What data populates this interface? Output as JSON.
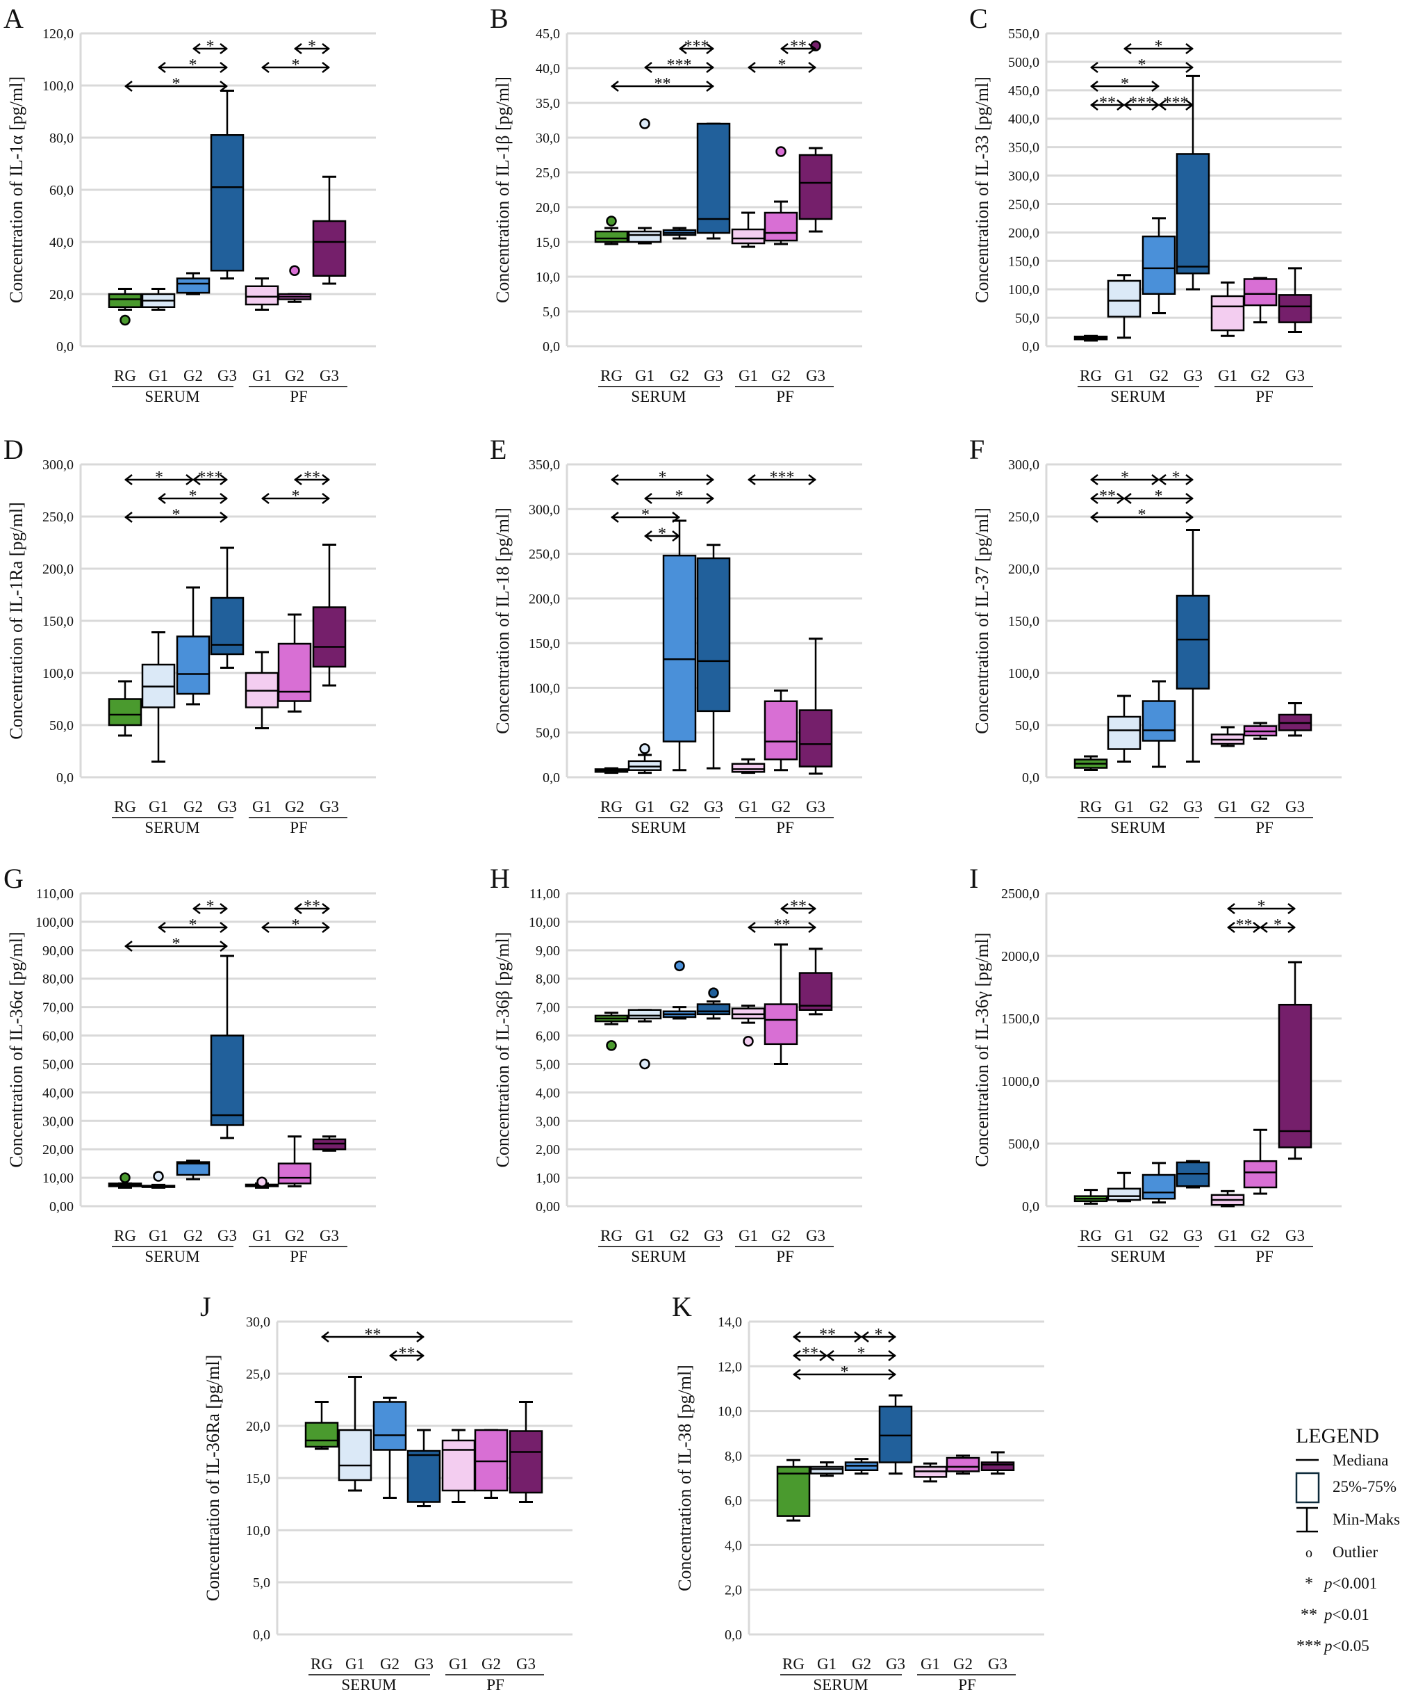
{
  "shared": {
    "categories": [
      "RG",
      "G1",
      "G2",
      "G3",
      "G1",
      "G2",
      "G3"
    ],
    "group_labels": [
      "SERUM",
      "PF"
    ],
    "colors": [
      "#4a9a2e",
      "#dbe9f7",
      "#4a90d9",
      "#21609b",
      "#f3cdf0",
      "#d86fd4",
      "#751f6b"
    ],
    "grid": true
  },
  "legend": {
    "title": "LEGEND",
    "items": [
      {
        "symbol": "median-line",
        "label": "Mediana"
      },
      {
        "symbol": "box",
        "label": "25%-75%"
      },
      {
        "symbol": "whisker",
        "label": "Min-Maks"
      },
      {
        "symbol": "o",
        "label": "Outlier"
      },
      {
        "symbol": "*",
        "label": "p<0.001"
      },
      {
        "symbol": "**",
        "label": "p<0.01"
      },
      {
        "symbol": "***",
        "label": "p<0.05"
      }
    ]
  },
  "chart_data": [
    {
      "panel": "A",
      "type": "box",
      "ylabel": "Concentration of IL-1α [pg/ml]",
      "yticks": [
        "0,0",
        "20,0",
        "40,0",
        "60,0",
        "80,0",
        "100,0",
        "120,0"
      ],
      "boxes": [
        [
          14,
          15,
          18,
          20,
          22
        ],
        [
          14,
          15,
          17.5,
          20,
          22
        ],
        [
          20,
          20.5,
          24,
          26,
          28
        ],
        [
          26,
          29,
          61,
          81,
          98
        ],
        [
          14,
          16,
          19,
          23,
          26
        ],
        [
          17,
          18,
          19,
          20,
          20
        ],
        [
          24,
          27,
          40,
          48,
          65
        ]
      ],
      "outliers": [
        [
          10
        ],
        [],
        [],
        [],
        [],
        [
          29
        ],
        []
      ],
      "significance": [
        {
          "from": 0,
          "to": 3,
          "label": "*"
        },
        {
          "from": 1,
          "to": 3,
          "label": "*"
        },
        {
          "from": 2,
          "to": 3,
          "label": "*"
        },
        {
          "from": 4,
          "to": 6,
          "label": "*"
        },
        {
          "from": 5,
          "to": 6,
          "label": "*"
        }
      ]
    },
    {
      "panel": "B",
      "type": "box",
      "ylabel": "Concentration of IL-1β [pg/ml]",
      "yticks": [
        "0,0",
        "5,0",
        "10,0",
        "15,0",
        "20,0",
        "25,0",
        "30,0",
        "35,0",
        "40,0",
        "45,0"
      ],
      "boxes": [
        [
          14.7,
          15,
          15.5,
          16.5,
          17
        ],
        [
          14.8,
          15,
          16,
          16.5,
          17
        ],
        [
          15.5,
          16,
          16.3,
          16.7,
          17
        ],
        [
          15.5,
          16.3,
          18.3,
          32,
          32
        ],
        [
          14.3,
          14.8,
          15.5,
          16.8,
          19.2
        ],
        [
          14.7,
          15.2,
          16.3,
          19.2,
          20.8
        ],
        [
          16.5,
          18.3,
          23.5,
          27.5,
          28.5
        ]
      ],
      "outliers": [
        [
          18
        ],
        [
          32
        ],
        [],
        [],
        [],
        [
          28
        ],
        [
          43.2
        ]
      ],
      "significance": [
        {
          "from": 0,
          "to": 3,
          "label": "**"
        },
        {
          "from": 1,
          "to": 3,
          "label": "***"
        },
        {
          "from": 2,
          "to": 3,
          "label": "***"
        },
        {
          "from": 4,
          "to": 6,
          "label": "*"
        },
        {
          "from": 5,
          "to": 6,
          "label": "**"
        }
      ]
    },
    {
      "panel": "C",
      "type": "box",
      "ylabel": "Concentration of IL-33 [pg/ml]",
      "yticks": [
        "0,0",
        "50,0",
        "100,0",
        "150,0",
        "200,0",
        "250,0",
        "300,0",
        "350,0",
        "400,0",
        "450,0",
        "500,0",
        "550,0"
      ],
      "boxes": [
        [
          10,
          12,
          15,
          17,
          18
        ],
        [
          15,
          52,
          80,
          115,
          125
        ],
        [
          58,
          92,
          137,
          193,
          225
        ],
        [
          100,
          128,
          140,
          338,
          475
        ],
        [
          18,
          28,
          70,
          88,
          112
        ],
        [
          42,
          72,
          92,
          118,
          120
        ],
        [
          25,
          42,
          70,
          90,
          137
        ]
      ],
      "outliers": [
        [],
        [],
        [],
        [],
        [],
        [],
        []
      ],
      "significance": [
        {
          "from": 0,
          "to": 1,
          "label": "**"
        },
        {
          "from": 1,
          "to": 2,
          "label": "***"
        },
        {
          "from": 0,
          "to": 2,
          "label": "*"
        },
        {
          "from": 0,
          "to": 3,
          "label": "*"
        },
        {
          "from": 1,
          "to": 3,
          "label": "*"
        },
        {
          "from": 2,
          "to": 3,
          "label": "***"
        }
      ]
    },
    {
      "panel": "D",
      "type": "box",
      "ylabel": "Concentration of IL-1Ra [pg/ml]",
      "yticks": [
        "0,0",
        "50,0",
        "100,0",
        "150,0",
        "200,0",
        "250,0",
        "300,0"
      ],
      "boxes": [
        [
          40,
          50,
          60,
          75,
          92
        ],
        [
          15,
          67,
          87,
          108,
          139
        ],
        [
          70,
          80,
          99,
          135,
          182
        ],
        [
          105,
          118,
          127,
          172,
          220
        ],
        [
          47,
          67,
          83,
          100,
          120
        ],
        [
          63,
          73,
          82,
          128,
          156
        ],
        [
          88,
          106,
          125,
          163,
          223
        ]
      ],
      "outliers": [
        [],
        [],
        [],
        [],
        [],
        [],
        []
      ],
      "significance": [
        {
          "from": 0,
          "to": 3,
          "label": "*"
        },
        {
          "from": 1,
          "to": 3,
          "label": "*"
        },
        {
          "from": 0,
          "to": 2,
          "label": "*"
        },
        {
          "from": 2,
          "to": 3,
          "label": "***"
        },
        {
          "from": 4,
          "to": 6,
          "label": "*"
        },
        {
          "from": 5,
          "to": 6,
          "label": "**"
        }
      ]
    },
    {
      "panel": "E",
      "type": "box",
      "ylabel": "Concentration of IL-18 [pg/ml]",
      "yticks": [
        "0,0",
        "50,0",
        "100,0",
        "150,0",
        "200,0",
        "250,0",
        "300,0",
        "350,0"
      ],
      "boxes": [
        [
          5,
          6,
          8,
          9,
          10
        ],
        [
          5,
          8,
          12,
          18,
          25
        ],
        [
          8,
          40,
          132,
          248,
          287
        ],
        [
          10,
          74,
          130,
          245,
          260
        ],
        [
          5,
          6,
          9,
          15,
          20
        ],
        [
          8,
          20,
          40,
          85,
          97
        ],
        [
          4,
          12,
          37,
          75,
          155
        ]
      ],
      "outliers": [
        [],
        [
          32
        ],
        [],
        [],
        [],
        [],
        []
      ],
      "significance": [
        {
          "from": 1,
          "to": 2,
          "label": "*"
        },
        {
          "from": 0,
          "to": 2,
          "label": "*"
        },
        {
          "from": 1,
          "to": 3,
          "label": "*"
        },
        {
          "from": 0,
          "to": 3,
          "label": "*"
        },
        {
          "from": 4,
          "to": 6,
          "label": "***"
        }
      ]
    },
    {
      "panel": "F",
      "type": "box",
      "ylabel": "Concentration of IL-37 [pg/ml]",
      "yticks": [
        "0,0",
        "50,0",
        "100,0",
        "150,0",
        "200,0",
        "250,0",
        "300,0"
      ],
      "boxes": [
        [
          7,
          9,
          13,
          17,
          20
        ],
        [
          15,
          27,
          45,
          58,
          78
        ],
        [
          10,
          35,
          45,
          73,
          92
        ],
        [
          15,
          85,
          132,
          174,
          237
        ],
        [
          30,
          32,
          36,
          41,
          48
        ],
        [
          37,
          40,
          44,
          49,
          52
        ],
        [
          40,
          45,
          52,
          60,
          71
        ]
      ],
      "outliers": [
        [],
        [],
        [],
        [],
        [],
        [],
        []
      ],
      "significance": [
        {
          "from": 0,
          "to": 3,
          "label": "*"
        },
        {
          "from": 0,
          "to": 1,
          "label": "**"
        },
        {
          "from": 1,
          "to": 3,
          "label": "*"
        },
        {
          "from": 0,
          "to": 2,
          "label": "*"
        },
        {
          "from": 2,
          "to": 3,
          "label": "*"
        }
      ]
    },
    {
      "panel": "G",
      "type": "box",
      "ylabel": "Concentration of IL-36α [pg/ml]",
      "yticks": [
        "0,00",
        "10,00",
        "20,00",
        "30,00",
        "40,00",
        "50,00",
        "60,00",
        "70,00",
        "80,00",
        "90,00",
        "100,00",
        "110,00"
      ],
      "boxes": [
        [
          6.5,
          7,
          7.5,
          8,
          8
        ],
        [
          6.5,
          6.7,
          7,
          7.2,
          7.5
        ],
        [
          9.5,
          11,
          15,
          15.5,
          16
        ],
        [
          24,
          28.5,
          32,
          60,
          88
        ],
        [
          6.5,
          7,
          7.3,
          7.6,
          8
        ],
        [
          7,
          8,
          10,
          15,
          24.5
        ],
        [
          19.5,
          20,
          22,
          23.5,
          24.5
        ]
      ],
      "outliers": [
        [
          10
        ],
        [
          10.5
        ],
        [],
        [],
        [
          8.5
        ],
        [],
        []
      ],
      "significance": [
        {
          "from": 0,
          "to": 3,
          "label": "*"
        },
        {
          "from": 1,
          "to": 3,
          "label": "*"
        },
        {
          "from": 2,
          "to": 3,
          "label": "*"
        },
        {
          "from": 4,
          "to": 6,
          "label": "*"
        },
        {
          "from": 5,
          "to": 6,
          "label": "**"
        }
      ]
    },
    {
      "panel": "H",
      "type": "box",
      "ylabel": "Concentration of IL-36β [pg/ml]",
      "yticks": [
        "0,00",
        "1,00",
        "2,00",
        "3,00",
        "4,00",
        "5,00",
        "6,00",
        "7,00",
        "8,00",
        "9,00",
        "10,00",
        "11,00"
      ],
      "boxes": [
        [
          6.4,
          6.5,
          6.6,
          6.7,
          6.8
        ],
        [
          6.5,
          6.6,
          6.7,
          6.9,
          6.9
        ],
        [
          6.6,
          6.65,
          6.75,
          6.85,
          7.0
        ],
        [
          6.6,
          6.75,
          6.85,
          7.1,
          7.2
        ],
        [
          6.45,
          6.6,
          6.75,
          6.95,
          7.05
        ],
        [
          5.0,
          5.7,
          6.55,
          7.1,
          9.2
        ],
        [
          6.75,
          6.9,
          7.05,
          8.2,
          9.05
        ]
      ],
      "outliers": [
        [
          5.65
        ],
        [
          5.0
        ],
        [
          8.45
        ],
        [
          7.5
        ],
        [
          5.8
        ],
        [],
        []
      ],
      "significance": [
        {
          "from": 4,
          "to": 6,
          "label": "**"
        },
        {
          "from": 5,
          "to": 6,
          "label": "**"
        }
      ]
    },
    {
      "panel": "I",
      "type": "box",
      "ylabel": "Concentration of IL-36γ [pg/ml]",
      "yticks": [
        "0,0",
        "500,0",
        "1000,0",
        "1500,0",
        "2000,0",
        "2500,0"
      ],
      "boxes": [
        [
          20,
          40,
          60,
          80,
          130
        ],
        [
          40,
          50,
          80,
          140,
          265
        ],
        [
          30,
          60,
          110,
          250,
          345
        ],
        [
          150,
          160,
          260,
          350,
          360
        ],
        [
          0,
          10,
          50,
          90,
          120
        ],
        [
          100,
          150,
          270,
          360,
          610
        ],
        [
          380,
          470,
          600,
          1610,
          1950
        ]
      ],
      "outliers": [
        [],
        [],
        [],
        [],
        [],
        [],
        []
      ],
      "significance": [
        {
          "from": 4,
          "to": 5,
          "label": "**"
        },
        {
          "from": 5,
          "to": 6,
          "label": "*"
        },
        {
          "from": 4,
          "to": 6,
          "label": "*"
        }
      ]
    },
    {
      "panel": "J",
      "type": "box",
      "ylabel": "Concentration of IL-36Ra [pg/ml]",
      "yticks": [
        "0,0",
        "5,0",
        "10,0",
        "15,0",
        "20,0",
        "25,0",
        "30,0"
      ],
      "boxes": [
        [
          17.8,
          18,
          18.6,
          20.3,
          22.3
        ],
        [
          13.8,
          14.8,
          16.2,
          19.6,
          24.7
        ],
        [
          13.1,
          17.7,
          19.1,
          22.3,
          22.7
        ],
        [
          12.3,
          12.7,
          17.2,
          17.6,
          19.6
        ],
        [
          12.7,
          13.8,
          17.7,
          18.6,
          19.6
        ],
        [
          13.1,
          13.8,
          16.6,
          19.6,
          19.6
        ],
        [
          12.7,
          13.6,
          17.5,
          19.5,
          22.3
        ]
      ],
      "outliers": [
        [],
        [],
        [],
        [],
        [],
        [],
        []
      ],
      "significance": [
        {
          "from": 2,
          "to": 3,
          "label": "**"
        },
        {
          "from": 0,
          "to": 3,
          "label": "**"
        }
      ]
    },
    {
      "panel": "K",
      "type": "box",
      "ylabel": "Concentration of IL-38 [pg/ml]",
      "yticks": [
        "0,0",
        "2,0",
        "4,0",
        "6,0",
        "8,0",
        "10,0",
        "12,0",
        "14,0"
      ],
      "boxes": [
        [
          5.1,
          5.3,
          7.2,
          7.5,
          7.8
        ],
        [
          7.1,
          7.2,
          7.4,
          7.5,
          7.7
        ],
        [
          7.2,
          7.35,
          7.55,
          7.7,
          7.85
        ],
        [
          7.2,
          7.7,
          8.9,
          10.2,
          10.7
        ],
        [
          6.85,
          7.05,
          7.3,
          7.5,
          7.65
        ],
        [
          7.2,
          7.3,
          7.5,
          7.9,
          8.0
        ],
        [
          7.2,
          7.35,
          7.6,
          7.7,
          8.15
        ]
      ],
      "outliers": [
        [],
        [],
        [],
        [],
        [],
        [],
        []
      ],
      "significance": [
        {
          "from": 0,
          "to": 3,
          "label": "*"
        },
        {
          "from": 0,
          "to": 1,
          "label": "**"
        },
        {
          "from": 1,
          "to": 3,
          "label": "*"
        },
        {
          "from": 0,
          "to": 2,
          "label": "**"
        },
        {
          "from": 2,
          "to": 3,
          "label": "*"
        }
      ]
    }
  ]
}
